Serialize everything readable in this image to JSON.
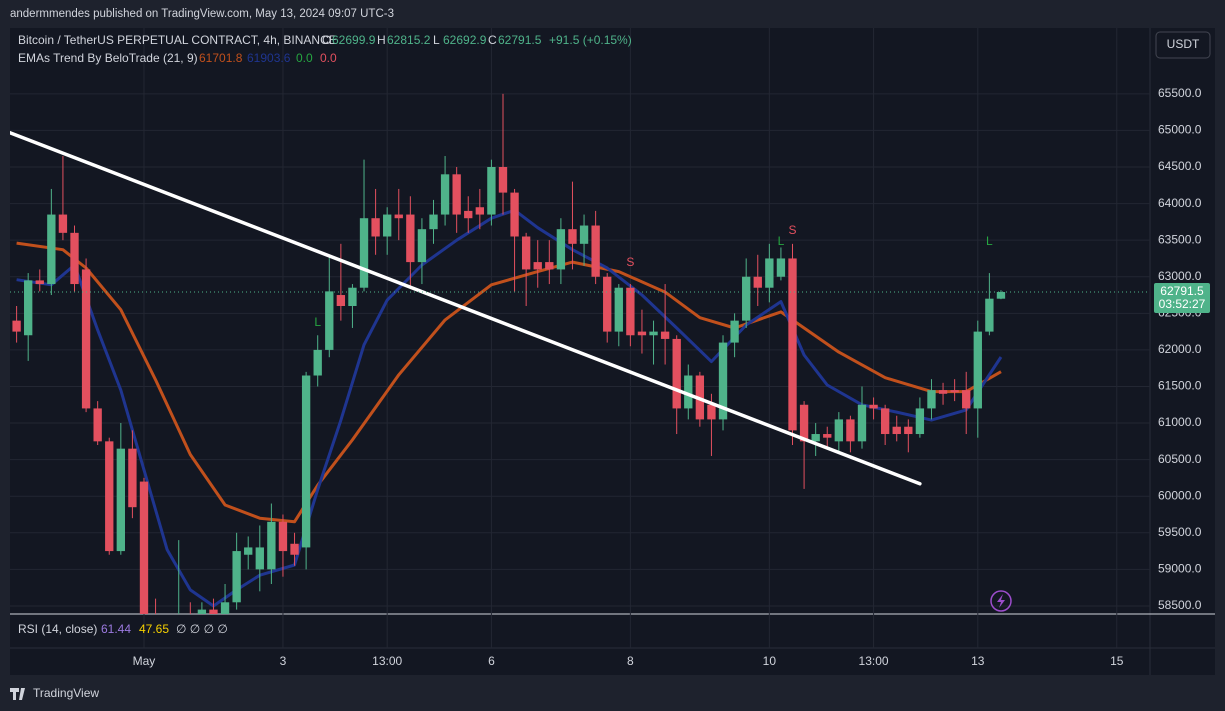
{
  "page": {
    "attribution": "andermmendes published on TradingView.com, May 13, 2024 09:07 UTC-3",
    "brand": "TradingView",
    "currency_button": "USDT"
  },
  "chart_data": {
    "type": "candlestick",
    "title": "Bitcoin / TetherUS PERPETUAL CONTRACT, 4h, BINANCE",
    "ohlc_labels": [
      "O",
      "H",
      "L",
      "C"
    ],
    "change": "+91.5 (+0.15%)",
    "countdown": "03:52:27",
    "up_color": "#4fb38a",
    "down_color": "#e3505f",
    "x": [
      -11,
      -10,
      -9,
      -8,
      -7,
      -6,
      -5,
      -4,
      -3,
      -2,
      -1,
      0,
      1,
      2,
      3,
      4,
      5,
      6,
      7,
      8,
      9,
      10,
      11,
      12,
      13,
      14,
      15,
      16,
      17,
      18,
      19,
      20,
      21,
      22,
      23,
      24,
      25,
      26,
      27,
      28,
      29,
      30,
      31,
      32,
      33,
      34,
      35,
      36,
      37,
      38,
      39,
      40,
      41,
      42,
      43,
      44,
      45,
      46,
      47,
      48,
      49,
      50,
      51,
      52,
      53,
      54,
      55,
      56,
      57,
      58,
      59,
      60,
      61,
      62,
      63,
      64,
      65,
      66,
      67,
      68,
      69,
      70,
      71,
      72,
      73,
      74
    ],
    "open": [
      62400,
      62200,
      62950,
      62900,
      63850,
      63600,
      63100,
      61200,
      60750,
      59250,
      60650,
      60200,
      58350,
      57900,
      58100,
      58300,
      58200,
      58450,
      58350,
      58550,
      59200,
      59000,
      59000,
      59650,
      59350,
      59300,
      61650,
      62000,
      62750,
      62600,
      62850,
      63800,
      63550,
      63850,
      63850,
      63200,
      63650,
      63850,
      64400,
      63900,
      63950,
      63850,
      64500,
      64150,
      63550,
      63200,
      63200,
      63100,
      63650,
      63450,
      63700,
      63000,
      62250,
      62850,
      62250,
      62200,
      62250,
      62150,
      61200,
      61650,
      61250,
      61050,
      62100,
      62400,
      63000,
      62850,
      63000,
      63250,
      61250,
      60750,
      60850,
      60750,
      61050,
      60750,
      61250,
      61200,
      60950,
      60950,
      60850,
      61200,
      61450,
      61450,
      61450,
      61200,
      62250,
      62699.9
    ],
    "high": [
      62600,
      63050,
      63100,
      64200,
      64650,
      63700,
      63250,
      61300,
      60800,
      61000,
      60900,
      60250,
      58600,
      58300,
      59400,
      58550,
      58550,
      58600,
      58800,
      59500,
      59450,
      59600,
      59900,
      59750,
      59500,
      61700,
      62200,
      63300,
      63450,
      62900,
      64600,
      64200,
      63950,
      64200,
      64100,
      63800,
      64050,
      64650,
      64500,
      64100,
      64200,
      64600,
      65500,
      64200,
      63600,
      63500,
      63500,
      63800,
      64300,
      63850,
      63900,
      63050,
      62900,
      62900,
      62550,
      62400,
      62900,
      62200,
      61800,
      61700,
      61400,
      62200,
      62500,
      63250,
      63300,
      63450,
      63400,
      63450,
      61300,
      61000,
      60950,
      61150,
      61100,
      61500,
      61350,
      61250,
      61100,
      61050,
      61350,
      61600,
      61550,
      61600,
      61700,
      62400,
      63050,
      62815.2
    ],
    "low": [
      62100,
      61850,
      62800,
      62750,
      63500,
      62800,
      61150,
      60700,
      59200,
      59200,
      59700,
      58200,
      57700,
      57600,
      57900,
      58000,
      58100,
      58100,
      58300,
      58450,
      59000,
      58700,
      58800,
      58900,
      59050,
      59000,
      61500,
      61900,
      62400,
      62300,
      62800,
      63300,
      63300,
      63500,
      62850,
      62900,
      63450,
      63700,
      63600,
      63600,
      63650,
      63700,
      63850,
      62800,
      62600,
      62850,
      62900,
      62900,
      63100,
      63150,
      62900,
      62100,
      62050,
      62050,
      61950,
      61800,
      61800,
      60850,
      61050,
      60950,
      60550,
      60900,
      61900,
      62300,
      62600,
      62650,
      62950,
      60700,
      60100,
      60550,
      60650,
      60600,
      60600,
      60650,
      61050,
      60700,
      60750,
      60600,
      60800,
      61050,
      61250,
      61300,
      60850,
      60800,
      62200,
      62692.9
    ],
    "close": [
      62250,
      62950,
      62900,
      63850,
      63600,
      62900,
      61200,
      60750,
      59250,
      60650,
      59850,
      58350,
      57900,
      58100,
      58300,
      58200,
      58450,
      58300,
      58550,
      59250,
      59300,
      59300,
      59650,
      59250,
      59200,
      61650,
      62000,
      62800,
      62600,
      62850,
      63800,
      63550,
      63850,
      63800,
      63200,
      63650,
      63850,
      64400,
      63850,
      63800,
      63850,
      64500,
      64150,
      63550,
      63100,
      63100,
      63100,
      63650,
      63450,
      63700,
      63000,
      62250,
      62850,
      62200,
      62200,
      62250,
      62150,
      61200,
      61650,
      61050,
      61050,
      62100,
      62400,
      63000,
      62850,
      63250,
      63250,
      60900,
      60750,
      60850,
      60800,
      61050,
      60750,
      61250,
      61200,
      60850,
      60850,
      60850,
      61200,
      61450,
      61400,
      61420,
      61200,
      62250,
      62700,
      62791.5
    ],
    "indicator": {
      "name": "EMAs Trend By BeloTrade (21, 9)",
      "flags": [
        {
          "text": "0.0",
          "color": "#26a641"
        },
        {
          "text": "0.0",
          "color": "#e3505f"
        }
      ]
    },
    "series": [
      {
        "name": "EMA 21",
        "color": "#c1501c",
        "x": [
          -11,
          -7,
          -5,
          -2,
          1,
          4,
          7,
          10,
          13,
          15,
          18,
          22,
          26,
          30,
          34,
          37,
          41,
          45,
          48,
          51,
          55,
          57,
          60,
          64,
          68,
          71,
          74
        ],
        "values": [
          63460,
          63370,
          63120,
          62550,
          61590,
          60570,
          59880,
          59700,
          59650,
          60150,
          60770,
          61660,
          62410,
          62890,
          63070,
          63200,
          63070,
          62790,
          62440,
          62300,
          62520,
          62300,
          61970,
          61620,
          61430,
          61430,
          61701.8
        ]
      },
      {
        "name": "EMA 9",
        "color": "#1f3590",
        "x": [
          -11,
          -8,
          -6,
          -4,
          -2,
          0,
          2,
          4,
          6,
          8,
          10,
          13,
          15,
          17,
          19,
          21,
          24,
          27,
          30,
          32,
          34,
          37,
          40,
          43,
          46,
          49,
          52,
          55,
          57,
          59,
          62,
          65,
          68,
          71,
          74
        ],
        "values": [
          62960,
          62890,
          63160,
          62270,
          61450,
          60360,
          59270,
          58720,
          58500,
          58720,
          58920,
          59060,
          60090,
          61040,
          62070,
          62680,
          63160,
          63500,
          63800,
          63910,
          63670,
          63370,
          63120,
          62750,
          62300,
          61840,
          62340,
          62660,
          61930,
          61520,
          61250,
          61150,
          61040,
          61180,
          61903.6
        ]
      }
    ],
    "trendline": {
      "color": "#ffffff",
      "x": [
        -11.6,
        67
      ],
      "values": [
        64970,
        60170
      ]
    },
    "signals": [
      {
        "label": "L",
        "x": 15,
        "y": 62370,
        "color": "#26a641"
      },
      {
        "label": "S",
        "x": 42,
        "y": 63190,
        "color": "#e3505f"
      },
      {
        "label": "L",
        "x": 55,
        "y": 63480,
        "color": "#26a641"
      },
      {
        "label": "S",
        "x": 56,
        "y": 63630,
        "color": "#e3505f"
      },
      {
        "label": "L",
        "x": 73,
        "y": 63480,
        "color": "#26a641"
      }
    ],
    "rsi": {
      "name": "RSI (14, close)",
      "values": [
        61.44,
        47.65
      ],
      "colors": [
        "#9c7ae0",
        "#f5d000"
      ],
      "extra": "∅ ∅ ∅ ∅"
    },
    "xlim": [
      -11.57,
      86.87
    ],
    "ylim": [
      58390,
      66400
    ],
    "xticks": [
      {
        "value": 0,
        "label": "May"
      },
      {
        "value": 12,
        "label": "3"
      },
      {
        "value": 21,
        "label": "13:00"
      },
      {
        "value": 30,
        "label": "6"
      },
      {
        "value": 42,
        "label": "8"
      },
      {
        "value": 54,
        "label": "10"
      },
      {
        "value": 63,
        "label": "13:00"
      },
      {
        "value": 72,
        "label": "13"
      },
      {
        "value": 84,
        "label": "15"
      }
    ],
    "yticks": [
      {
        "value": 58500,
        "label": "58500.0"
      },
      {
        "value": 59000,
        "label": "59000.0"
      },
      {
        "value": 59500,
        "label": "59500.0"
      },
      {
        "value": 60000,
        "label": "60000.0"
      },
      {
        "value": 60500,
        "label": "60500.0"
      },
      {
        "value": 61000,
        "label": "61000.0"
      },
      {
        "value": 61500,
        "label": "61500.0"
      },
      {
        "value": 62000,
        "label": "62000.0"
      },
      {
        "value": 62500,
        "label": "62500.0"
      },
      {
        "value": 63000,
        "label": "63000.0"
      },
      {
        "value": 63500,
        "label": "63500.0"
      },
      {
        "value": 64000,
        "label": "64000.0"
      },
      {
        "value": 64500,
        "label": "64500.0"
      },
      {
        "value": 65000,
        "label": "65000.0"
      },
      {
        "value": 65500,
        "label": "65500.0"
      }
    ],
    "grid": true
  }
}
